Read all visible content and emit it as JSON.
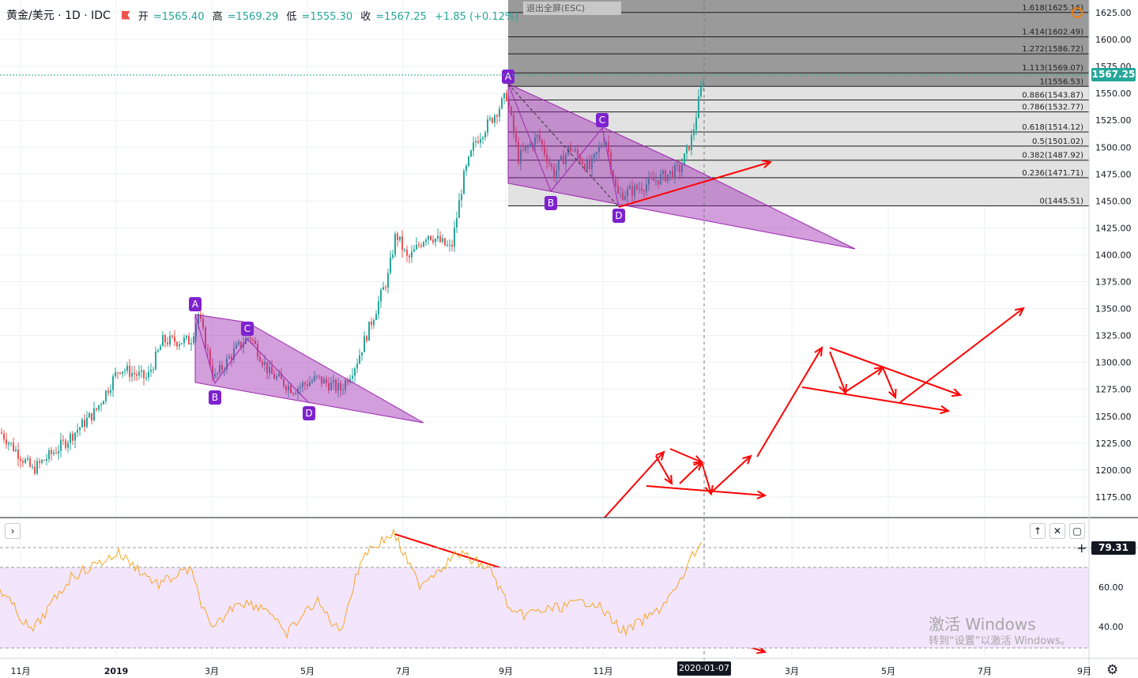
{
  "header": {
    "symbol": "黄金/美元 · 1D · IDC",
    "open_label": "开",
    "open": "=1565.40",
    "high_label": "高",
    "high": "=1569.29",
    "low_label": "低",
    "low": "=1555.30",
    "close_label": "收",
    "close": "=1567.25",
    "change": "+1.85 (+0.12%)"
  },
  "exit_fullscreen": "退出全屏(ESC)",
  "last_price": "1567.25",
  "rsi_value": "79.31",
  "crosshair_date": "2020-01-07",
  "price_axis": [
    "1625.00",
    "1600.00",
    "1575.00",
    "1550.00",
    "1525.00",
    "1500.00",
    "1475.00",
    "1450.00",
    "1425.00",
    "1400.00",
    "1375.00",
    "1350.00",
    "1325.00",
    "1300.00",
    "1275.00",
    "1250.00",
    "1225.00",
    "1200.00",
    "1175.00"
  ],
  "rsi_axis": [
    "60.00",
    "40.00"
  ],
  "time_axis": [
    "11月",
    "2019",
    "3月",
    "5月",
    "7月",
    "9月",
    "11月",
    "3月",
    "5月",
    "7月",
    "9月"
  ],
  "fib_levels": [
    {
      "label": "1.618(1625.16)",
      "value": 1625.16
    },
    {
      "label": "1.414(1602.49)",
      "value": 1602.49
    },
    {
      "label": "1.272(1586.72)",
      "value": 1586.72
    },
    {
      "label": "1.113(1569.07)",
      "value": 1569.07
    },
    {
      "label": "1(1556.53)",
      "value": 1556.53
    },
    {
      "label": "0.886(1543.87)",
      "value": 1543.87
    },
    {
      "label": "0.786(1532.77)",
      "value": 1532.77
    },
    {
      "label": "0.618(1514.12)",
      "value": 1514.12
    },
    {
      "label": "0.5(1501.02)",
      "value": 1501.02
    },
    {
      "label": "0.382(1487.92)",
      "value": 1487.92
    },
    {
      "label": "0.236(1471.71)",
      "value": 1471.71
    },
    {
      "label": "0(1445.51)",
      "value": 1445.51
    }
  ],
  "pattern_labels": [
    "A",
    "B",
    "C",
    "D",
    "A",
    "B",
    "C",
    "D"
  ],
  "colors": {
    "up": "#26a69a",
    "down": "#ef5350",
    "pattern": "#9c27b0",
    "arrows": "#ff0000",
    "rsi": "#f5a623",
    "rsi_band": "#f3e5fc"
  },
  "watermark": {
    "title": "激活 Windows",
    "subtitle": "转到“设置”以激活 Windows。"
  },
  "icons": {
    "collapse": "chevron-right-icon",
    "up": "arrow-up-icon",
    "close": "close-icon",
    "maximize": "maximize-icon",
    "settings": "gear-icon",
    "crosshair": "plus-icon"
  }
}
